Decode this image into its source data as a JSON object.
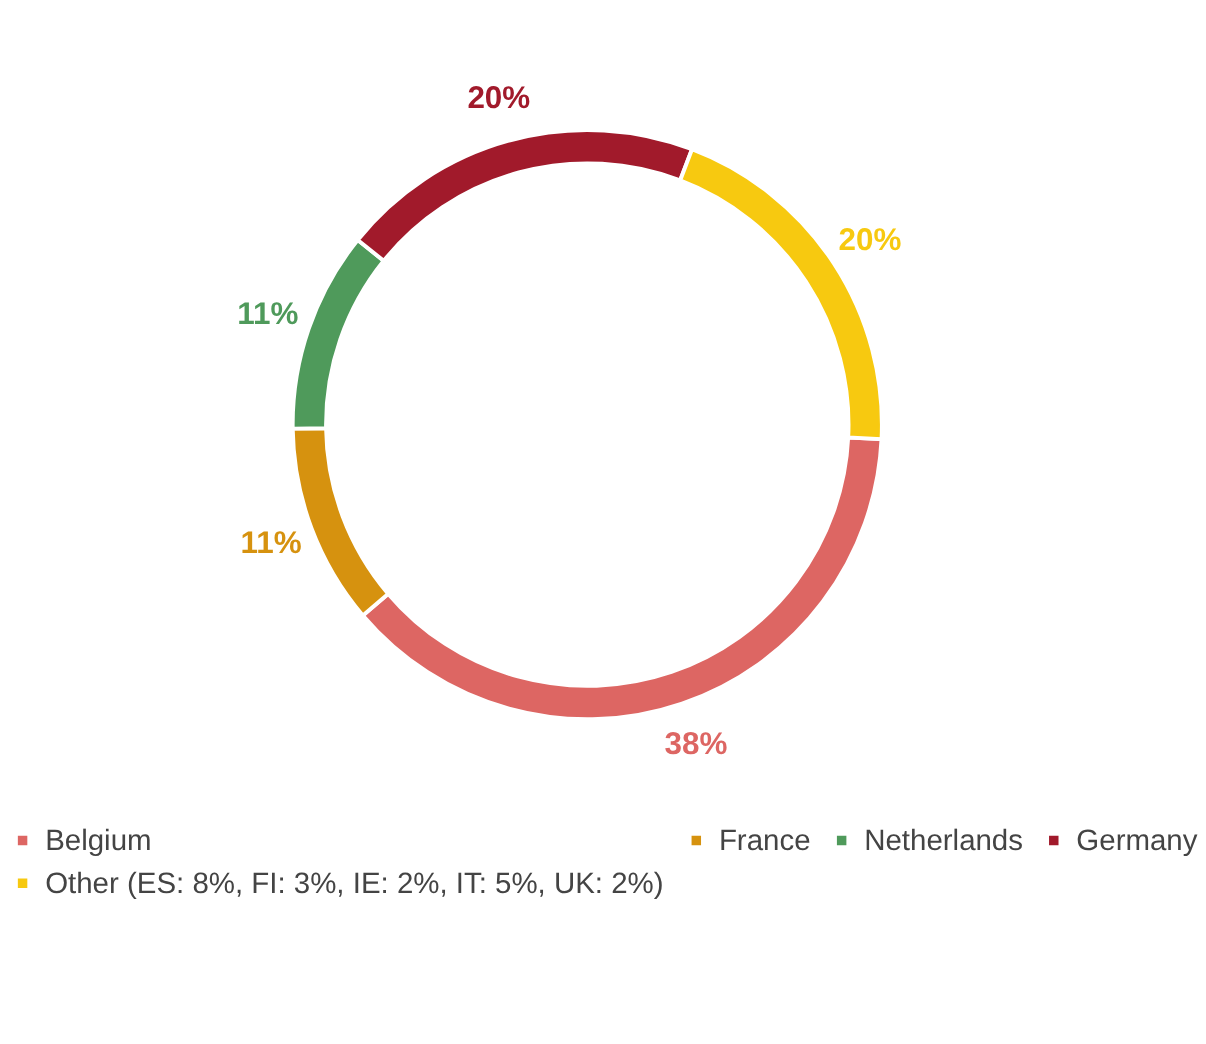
{
  "chart_data": {
    "type": "donut",
    "categories": [
      "Belgium",
      "France",
      "Netherlands",
      "Germany",
      "Other (ES: 8%, FI: 3%, IE: 2%, IT: 5%, UK: 2%)"
    ],
    "values": [
      38,
      11,
      11,
      20,
      20
    ],
    "value_labels": [
      "38%",
      "11%",
      "11%",
      "20%",
      "20%"
    ],
    "colors": [
      "#dd6663",
      "#d6920f",
      "#4f9a5b",
      "#a11a2b",
      "#f7c910"
    ],
    "legend": "bottom"
  }
}
